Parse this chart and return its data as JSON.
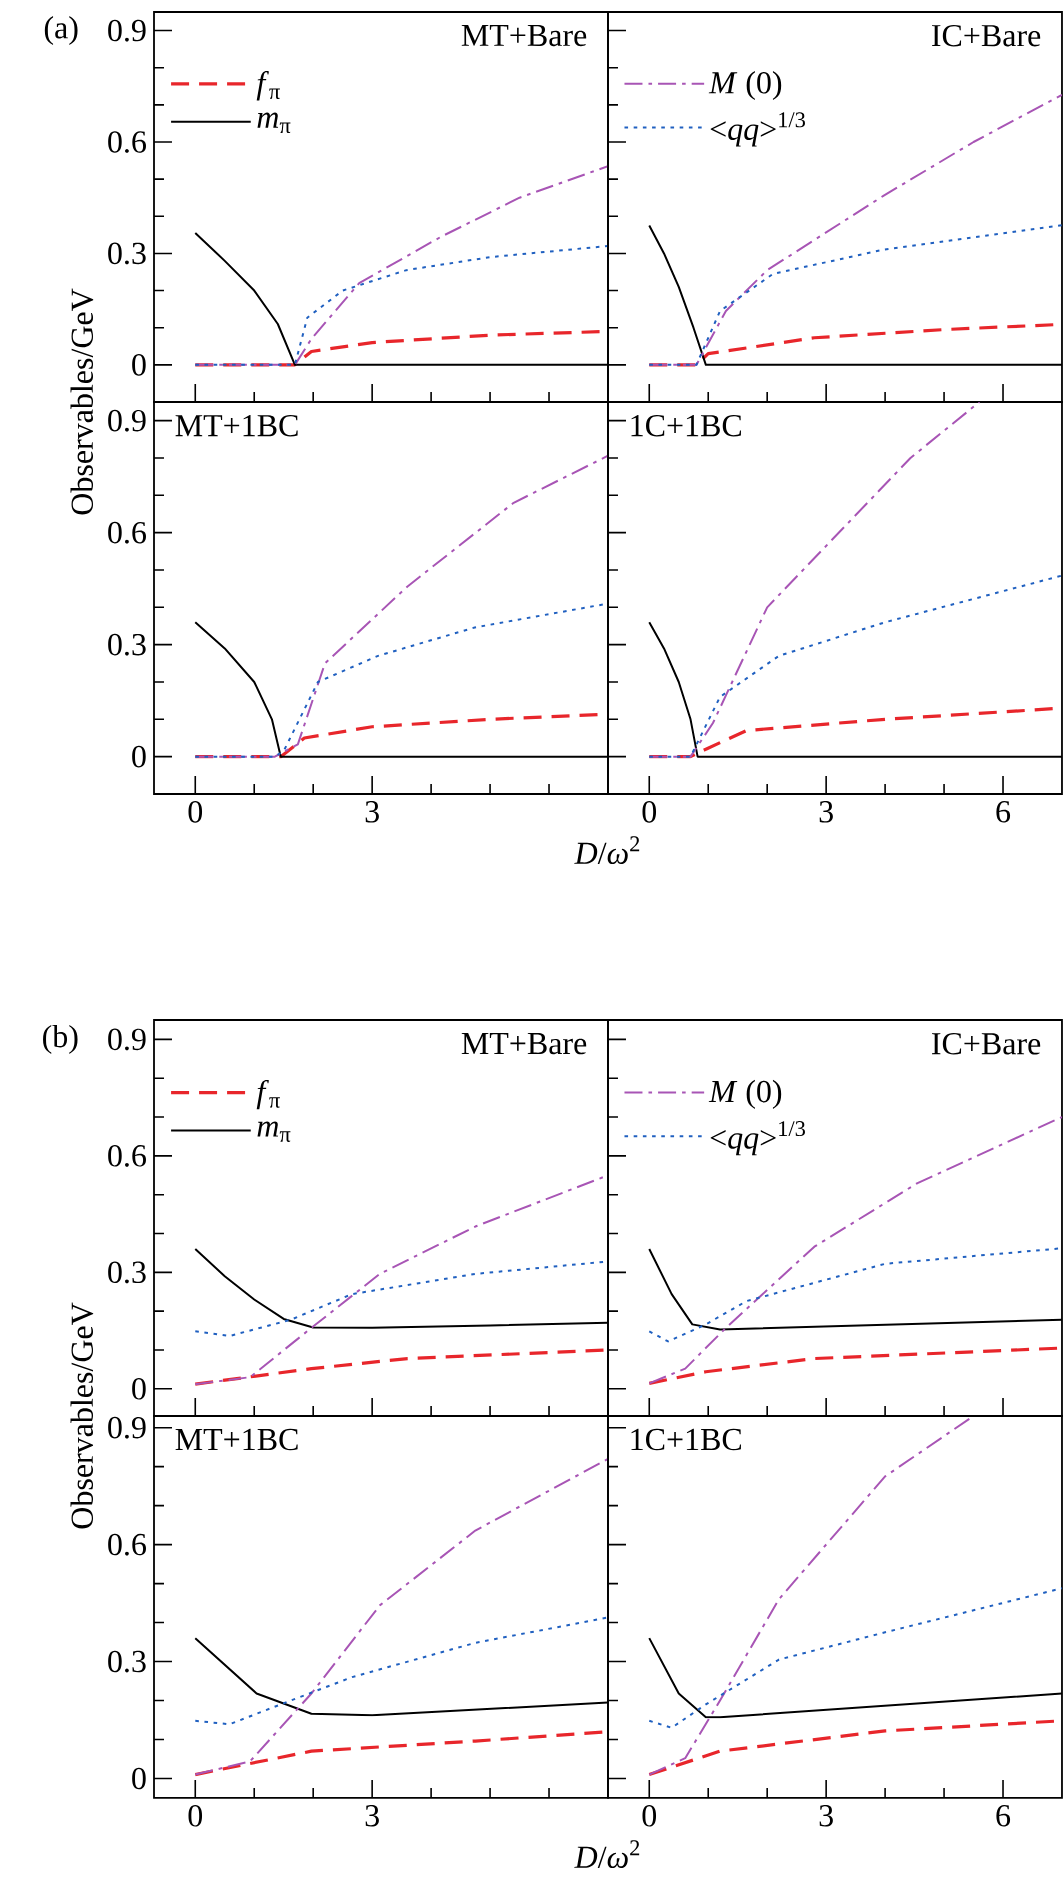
{
  "chart_data": [
    {
      "type": "line",
      "title": "MT+Bare",
      "ylabel": "Observables/GeV",
      "annotations": [
        "(a)"
      ],
      "legend": "top left",
      "tick_labels": "y",
      "xlim": [
        -0.7,
        7
      ],
      "ylim": [
        -0.1,
        0.95
      ],
      "xticks": [
        0,
        {
          "value": 1,
          "label": null
        },
        {
          "value": 2,
          "label": null
        },
        3,
        {
          "value": 4,
          "label": null
        },
        {
          "value": 5,
          "label": null
        },
        {
          "value": 6,
          "label": null
        }
      ],
      "yticks": [
        0,
        {
          "value": 0.1,
          "label": null
        },
        {
          "value": 0.2,
          "label": null
        },
        0.3,
        {
          "value": 0.4,
          "label": null
        },
        {
          "value": 0.5,
          "label": null
        },
        0.6,
        {
          "value": 0.7,
          "label": null
        },
        {
          "value": 0.8,
          "label": null
        },
        0.9
      ],
      "series": [
        {
          "name": "*m*$_{π}$",
          "color": "#000000",
          "line_style": "solid",
          "x": [
            0,
            0.5,
            1,
            1.4,
            1.69,
            7
          ],
          "values": [
            0.355,
            0.28,
            0.2,
            0.11,
            0,
            0
          ]
        },
        {
          "name": "*f*$_{π}$",
          "color": "#e8262b",
          "line_style": "dashed",
          "x": [
            0,
            1.69,
            1.97,
            3,
            5,
            7
          ],
          "values": [
            0,
            0,
            0.036,
            0.06,
            0.08,
            0.09
          ]
        },
        {
          "color": "#a855b5",
          "line_style": "dashdot",
          "x": [
            0,
            1.69,
            1.97,
            2.78,
            4.17,
            5.5,
            7
          ],
          "values": [
            0,
            0,
            0.07,
            0.22,
            0.345,
            0.45,
            0.535
          ]
        },
        {
          "color": "#2060c0",
          "line_style": "dotted",
          "x": [
            0,
            1.69,
            1.9,
            2.5,
            3.58,
            5,
            7
          ],
          "values": [
            0,
            0,
            0.127,
            0.2,
            0.255,
            0.29,
            0.32
          ]
        }
      ]
    },
    {
      "type": "line",
      "title": "IC+Bare",
      "legend": "top left",
      "tick_labels": false,
      "xlim": [
        -0.7,
        7
      ],
      "ylim": [
        -0.1,
        0.95
      ],
      "xticks": [
        0,
        {
          "value": 1,
          "label": null
        },
        {
          "value": 2,
          "label": null
        },
        3,
        {
          "value": 4,
          "label": null
        },
        {
          "value": 5,
          "label": null
        },
        6
      ],
      "yticks": [
        0,
        {
          "value": 0.1,
          "label": null
        },
        {
          "value": 0.2,
          "label": null
        },
        0.3,
        {
          "value": 0.4,
          "label": null
        },
        {
          "value": 0.5,
          "label": null
        },
        0.6,
        {
          "value": 0.7,
          "label": null
        },
        {
          "value": 0.8,
          "label": null
        },
        0.9
      ],
      "series": [
        {
          "color": "#000000",
          "line_style": "solid",
          "x": [
            0,
            0.25,
            0.5,
            0.75,
            0.96,
            7
          ],
          "values": [
            0.375,
            0.3,
            0.21,
            0.1,
            0,
            0
          ]
        },
        {
          "color": "#e8262b",
          "line_style": "dashed",
          "x": [
            0,
            0.8,
            1,
            2.8,
            5,
            7
          ],
          "values": [
            0,
            0,
            0.03,
            0.073,
            0.095,
            0.109
          ]
        },
        {
          "name": "*M* (0)",
          "color": "#a855b5",
          "line_style": "dashdot",
          "x": [
            0,
            0.8,
            1.3,
            2.0,
            3.97,
            5.5,
            7
          ],
          "values": [
            0,
            0,
            0.145,
            0.255,
            0.455,
            0.6,
            0.727
          ]
        },
        {
          "name": "<*qq*>$^{1/3}$",
          "color": "#2060c0",
          "line_style": "dotted",
          "x": [
            0,
            0.8,
            1.2,
            2.1,
            3.97,
            7
          ],
          "values": [
            0,
            0,
            0.145,
            0.245,
            0.31,
            0.376
          ]
        }
      ]
    },
    {
      "type": "line",
      "title": "MT+1BC",
      "xlabel": "*D*/*ω*$^{2}$",
      "xlim": [
        -0.7,
        7
      ],
      "ylim": [
        -0.1,
        0.95
      ],
      "xticks": [
        0,
        {
          "value": 1,
          "label": null
        },
        {
          "value": 2,
          "label": null
        },
        3,
        {
          "value": 4,
          "label": null
        },
        {
          "value": 5,
          "label": null
        },
        {
          "value": 6,
          "label": null
        }
      ],
      "yticks": [
        0,
        {
          "value": 0.1,
          "label": null
        },
        {
          "value": 0.2,
          "label": null
        },
        0.3,
        {
          "value": 0.4,
          "label": null
        },
        {
          "value": 0.5,
          "label": null
        },
        0.6,
        {
          "value": 0.7,
          "label": null
        },
        {
          "value": 0.8,
          "label": null
        },
        0.9
      ],
      "series": [
        {
          "color": "#000000",
          "line_style": "solid",
          "x": [
            0,
            0.5,
            1,
            1.3,
            1.45,
            7
          ],
          "values": [
            0.36,
            0.29,
            0.2,
            0.1,
            0,
            0
          ]
        },
        {
          "color": "#e8262b",
          "line_style": "dashed",
          "x": [
            0,
            1.45,
            1.85,
            3,
            5,
            7
          ],
          "values": [
            0,
            0,
            0.05,
            0.08,
            0.1,
            0.114
          ]
        },
        {
          "color": "#a855b5",
          "line_style": "dashdot",
          "x": [
            0,
            1.35,
            1.74,
            2.2,
            3.6,
            5.4,
            7
          ],
          "values": [
            0,
            0,
            0.033,
            0.25,
            0.456,
            0.68,
            0.806
          ]
        },
        {
          "color": "#2060c0",
          "line_style": "dotted",
          "x": [
            0,
            1.35,
            1.5,
            2.08,
            3.1,
            4.74,
            7
          ],
          "values": [
            0,
            0,
            0.015,
            0.2,
            0.27,
            0.346,
            0.41
          ]
        }
      ]
    },
    {
      "type": "line",
      "title": "1C+1BC",
      "tick_labels": "x",
      "xlim": [
        -0.7,
        7
      ],
      "ylim": [
        -0.1,
        0.95
      ],
      "xticks": [
        0,
        {
          "value": 1,
          "label": null
        },
        {
          "value": 2,
          "label": null
        },
        3,
        {
          "value": 4,
          "label": null
        },
        {
          "value": 5,
          "label": null
        },
        6
      ],
      "yticks": [
        0,
        {
          "value": 0.1,
          "label": null
        },
        {
          "value": 0.2,
          "label": null
        },
        0.3,
        {
          "value": 0.4,
          "label": null
        },
        {
          "value": 0.5,
          "label": null
        },
        0.6,
        {
          "value": 0.7,
          "label": null
        },
        {
          "value": 0.8,
          "label": null
        },
        0.9
      ],
      "series": [
        {
          "color": "#000000",
          "line_style": "solid",
          "x": [
            0,
            0.25,
            0.5,
            0.7,
            0.82,
            7
          ],
          "values": [
            0.36,
            0.29,
            0.2,
            0.1,
            0,
            0
          ]
        },
        {
          "color": "#e8262b",
          "line_style": "dashed",
          "x": [
            0,
            0.7,
            0.96,
            1.65,
            4,
            7
          ],
          "values": [
            0,
            0,
            0.02,
            0.07,
            0.1,
            0.13
          ]
        },
        {
          "color": "#a855b5",
          "line_style": "dashdot",
          "x": [
            0,
            0.7,
            1.08,
            2.0,
            4.43,
            5.6
          ],
          "values": [
            0,
            0,
            0.09,
            0.4,
            0.8,
            0.95
          ]
        },
        {
          "color": "#2060c0",
          "line_style": "dotted",
          "x": [
            0,
            0.7,
            1.2,
            2.2,
            4,
            7
          ],
          "values": [
            0,
            0,
            0.16,
            0.27,
            0.36,
            0.485
          ]
        }
      ]
    },
    {
      "type": "line",
      "title": "MT+Bare",
      "ylabel": "Observables/GeV",
      "annotations": [
        "(b)"
      ],
      "legend": "top left",
      "tick_labels": "y",
      "xlim": [
        -0.7,
        7
      ],
      "ylim": [
        -0.07,
        0.95
      ],
      "xticks": [
        0,
        {
          "value": 1,
          "label": null
        },
        {
          "value": 2,
          "label": null
        },
        3,
        {
          "value": 4,
          "label": null
        },
        {
          "value": 5,
          "label": null
        },
        {
          "value": 6,
          "label": null
        }
      ],
      "yticks": [
        0,
        {
          "value": 0.1,
          "label": null
        },
        {
          "value": 0.2,
          "label": null
        },
        0.3,
        {
          "value": 0.4,
          "label": null
        },
        {
          "value": 0.5,
          "label": null
        },
        0.6,
        {
          "value": 0.7,
          "label": null
        },
        {
          "value": 0.8,
          "label": null
        },
        0.9
      ],
      "series": [
        {
          "name": "*m*$_{π}$",
          "color": "#000000",
          "line_style": "solid",
          "x": [
            0,
            0.5,
            1,
            1.5,
            2,
            3,
            5,
            7
          ],
          "values": [
            0.36,
            0.29,
            0.23,
            0.18,
            0.158,
            0.157,
            0.163,
            0.17
          ]
        },
        {
          "name": "*f*$_{π}$",
          "color": "#e8262b",
          "line_style": "dashed",
          "x": [
            0,
            1.97,
            3.6,
            7
          ],
          "values": [
            0.012,
            0.052,
            0.078,
            0.1
          ]
        },
        {
          "color": "#a855b5",
          "line_style": "dashdot",
          "x": [
            0,
            0.93,
            1.97,
            3.13,
            4.75,
            7
          ],
          "values": [
            0.012,
            0.03,
            0.157,
            0.296,
            0.418,
            0.55
          ]
        },
        {
          "color": "#2060c0",
          "line_style": "dotted",
          "x": [
            0,
            0.58,
            1.62,
            2.66,
            4.75,
            7
          ],
          "values": [
            0.148,
            0.136,
            0.178,
            0.244,
            0.296,
            0.328
          ]
        }
      ]
    },
    {
      "type": "line",
      "title": "IC+Bare",
      "legend": "top left",
      "tick_labels": false,
      "xlim": [
        -0.7,
        7
      ],
      "ylim": [
        -0.07,
        0.95
      ],
      "xticks": [
        0,
        {
          "value": 1,
          "label": null
        },
        {
          "value": 2,
          "label": null
        },
        3,
        {
          "value": 4,
          "label": null
        },
        {
          "value": 5,
          "label": null
        },
        6
      ],
      "yticks": [
        0,
        {
          "value": 0.1,
          "label": null
        },
        {
          "value": 0.2,
          "label": null
        },
        0.3,
        {
          "value": 0.4,
          "label": null
        },
        {
          "value": 0.5,
          "label": null
        },
        0.6,
        {
          "value": 0.7,
          "label": null
        },
        {
          "value": 0.8,
          "label": null
        },
        0.9
      ],
      "series": [
        {
          "color": "#000000",
          "line_style": "solid",
          "x": [
            0,
            0.38,
            0.73,
            1.2,
            7
          ],
          "values": [
            0.36,
            0.244,
            0.166,
            0.153,
            0.178
          ]
        },
        {
          "color": "#e8262b",
          "line_style": "dashed",
          "x": [
            0,
            0.96,
            2.8,
            7
          ],
          "values": [
            0.014,
            0.044,
            0.078,
            0.105
          ]
        },
        {
          "name": "*M* (0)",
          "color": "#a855b5",
          "line_style": "dashdot",
          "x": [
            0,
            0.61,
            1.3,
            2.8,
            4.55,
            7
          ],
          "values": [
            0.014,
            0.052,
            0.157,
            0.366,
            0.53,
            0.7
          ]
        },
        {
          "name": "<*qq*>$^{1/3}$",
          "color": "#2060c0",
          "line_style": "dotted",
          "x": [
            0,
            0.32,
            0.96,
            1.65,
            4,
            7
          ],
          "values": [
            0.148,
            0.122,
            0.166,
            0.226,
            0.322,
            0.362
          ]
        }
      ]
    },
    {
      "type": "line",
      "title": "MT+1BC",
      "xlabel": "*D*/*ω*$^{2}$",
      "xlim": [
        -0.7,
        7
      ],
      "ylim": [
        -0.05,
        0.93
      ],
      "xticks": [
        0,
        {
          "value": 1,
          "label": null
        },
        {
          "value": 2,
          "label": null
        },
        3,
        {
          "value": 4,
          "label": null
        },
        {
          "value": 5,
          "label": null
        },
        {
          "value": 6,
          "label": null
        }
      ],
      "yticks": [
        0,
        {
          "value": 0.1,
          "label": null
        },
        {
          "value": 0.2,
          "label": null
        },
        0.3,
        {
          "value": 0.4,
          "label": null
        },
        {
          "value": 0.5,
          "label": null
        },
        0.6,
        {
          "value": 0.7,
          "label": null
        },
        {
          "value": 0.8,
          "label": null
        },
        0.9
      ],
      "series": [
        {
          "color": "#000000",
          "line_style": "solid",
          "x": [
            0,
            1.04,
            1.97,
            3,
            7
          ],
          "values": [
            0.36,
            0.218,
            0.166,
            0.162,
            0.195
          ]
        },
        {
          "color": "#e8262b",
          "line_style": "dashed",
          "x": [
            0,
            1.97,
            4.75,
            7
          ],
          "values": [
            0.01,
            0.07,
            0.096,
            0.12
          ]
        },
        {
          "color": "#a855b5",
          "line_style": "dashdot",
          "x": [
            0,
            0.93,
            1.97,
            3.13,
            4.75,
            7
          ],
          "values": [
            0.01,
            0.044,
            0.218,
            0.444,
            0.636,
            0.82
          ]
        },
        {
          "color": "#2060c0",
          "line_style": "dotted",
          "x": [
            0,
            0.58,
            1.62,
            2.66,
            4.75,
            7
          ],
          "values": [
            0.148,
            0.139,
            0.2,
            0.26,
            0.348,
            0.413
          ]
        }
      ]
    },
    {
      "type": "line",
      "title": "1C+1BC",
      "tick_labels": "x",
      "xlim": [
        -0.7,
        7
      ],
      "ylim": [
        -0.05,
        0.93
      ],
      "xticks": [
        0,
        {
          "value": 1,
          "label": null
        },
        {
          "value": 2,
          "label": null
        },
        3,
        {
          "value": 4,
          "label": null
        },
        {
          "value": 5,
          "label": null
        },
        6
      ],
      "yticks": [
        0,
        {
          "value": 0.1,
          "label": null
        },
        {
          "value": 0.2,
          "label": null
        },
        0.3,
        {
          "value": 0.4,
          "label": null
        },
        {
          "value": 0.5,
          "label": null
        },
        0.6,
        {
          "value": 0.7,
          "label": null
        },
        {
          "value": 0.8,
          "label": null
        },
        0.9
      ],
      "series": [
        {
          "color": "#000000",
          "line_style": "solid",
          "x": [
            0,
            0.5,
            0.96,
            1.2,
            7
          ],
          "values": [
            0.36,
            0.218,
            0.157,
            0.157,
            0.218
          ]
        },
        {
          "color": "#e8262b",
          "line_style": "dashed",
          "x": [
            0,
            1.2,
            4,
            7
          ],
          "values": [
            0.01,
            0.07,
            0.122,
            0.148
          ]
        },
        {
          "color": "#a855b5",
          "line_style": "dashdot",
          "x": [
            0,
            0.61,
            1.2,
            2.2,
            4,
            5.5
          ],
          "values": [
            0.01,
            0.052,
            0.2,
            0.46,
            0.775,
            0.93
          ]
        },
        {
          "color": "#2060c0",
          "line_style": "dotted",
          "x": [
            0,
            0.38,
            0.96,
            2.2,
            4,
            7
          ],
          "values": [
            0.148,
            0.13,
            0.19,
            0.305,
            0.375,
            0.488
          ]
        }
      ]
    }
  ]
}
